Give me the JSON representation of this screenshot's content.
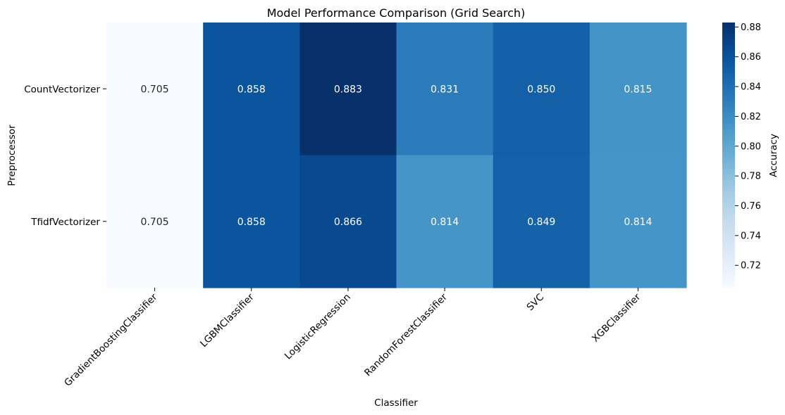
{
  "chart_data": {
    "type": "heatmap",
    "title": "Model Performance Comparison (Grid Search)",
    "xlabel": "Classifier",
    "ylabel": "Preprocessor",
    "colorbar_label": "Accuracy",
    "colormap": "Blues",
    "columns": [
      "GradientBoostingClassifier",
      "LGBMClassifier",
      "LogisticRegression",
      "RandomForestClassifier",
      "SVC",
      "XGBClassifier"
    ],
    "rows": [
      "CountVectorizer",
      "TfidfVectorizer"
    ],
    "values": [
      [
        0.705,
        0.858,
        0.883,
        0.831,
        0.85,
        0.815
      ],
      [
        0.705,
        0.858,
        0.866,
        0.814,
        0.849,
        0.814
      ]
    ],
    "value_labels": [
      [
        "0.705",
        "0.858",
        "0.883",
        "0.831",
        "0.850",
        "0.815"
      ],
      [
        "0.705",
        "0.858",
        "0.866",
        "0.814",
        "0.849",
        "0.814"
      ]
    ],
    "vmin": 0.705,
    "vmax": 0.883,
    "colorbar_ticks": [
      "0.72",
      "0.74",
      "0.76",
      "0.78",
      "0.80",
      "0.82",
      "0.84",
      "0.86",
      "0.88"
    ],
    "grid": false,
    "legend": "colorbar-right"
  }
}
